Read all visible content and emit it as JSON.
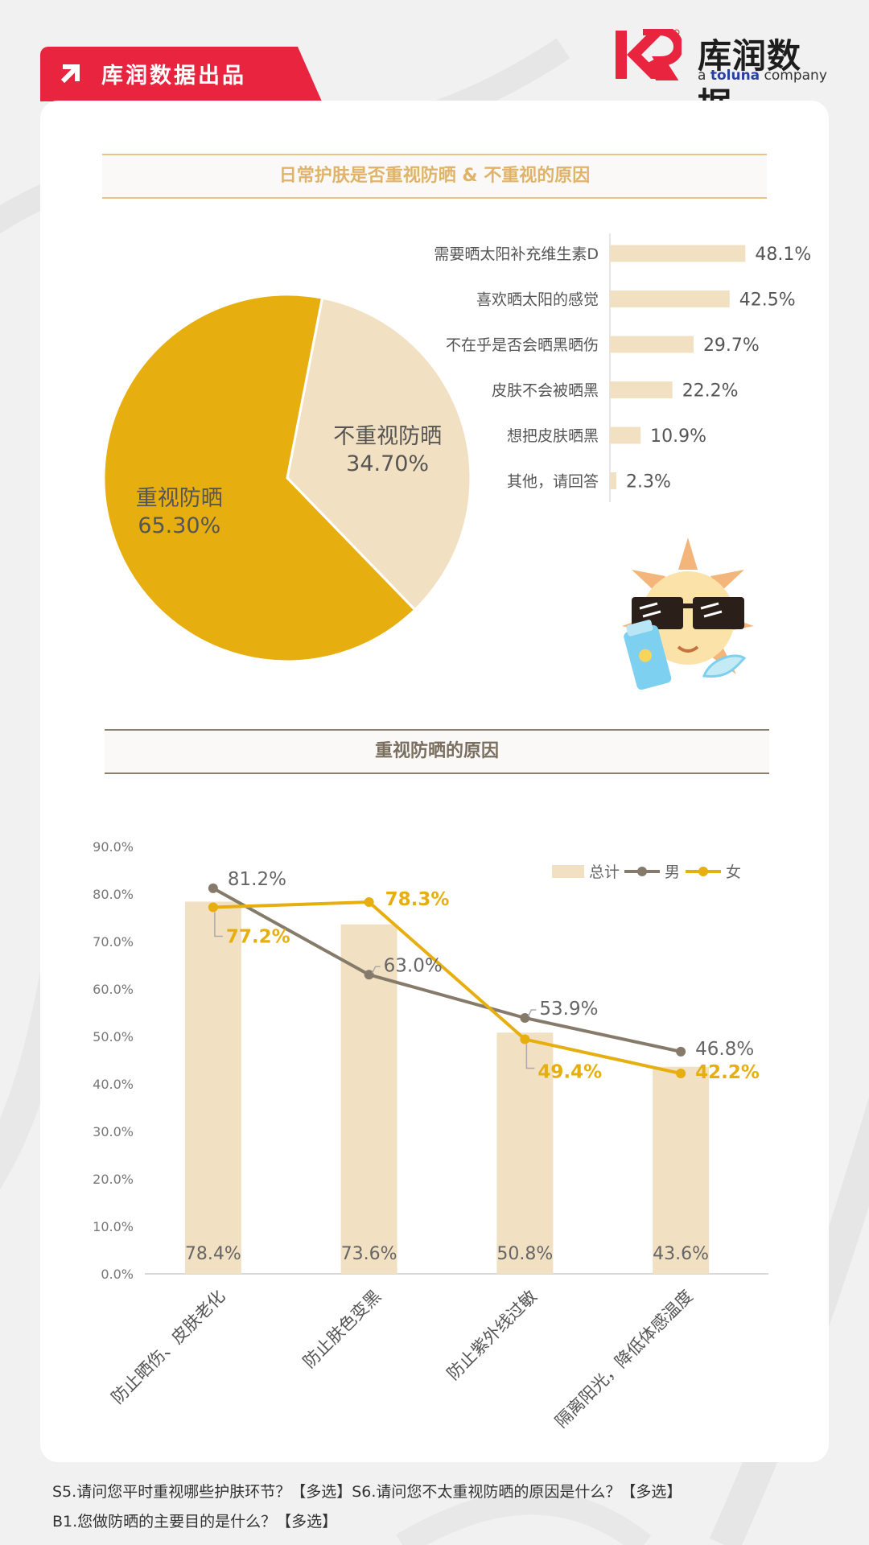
{
  "brand": {
    "tag_label": "库润数据出品",
    "logo_cn": "库润数据",
    "logo_en_prefix": "a ",
    "logo_en_brand": "toluna",
    "logo_en_suffix": " company"
  },
  "sections": {
    "top_title": "日常护肤是否重视防晒 & 不重视的原因",
    "bottom_title": "重视防晒的原因"
  },
  "footer": {
    "line1": "S5.请问您平时重视哪些护肤环节？【多选】S6.请问您不太重视防晒的原因是什么？【多选】",
    "line2": "B1.您做防晒的主要目的是什么？【多选】"
  },
  "colors": {
    "gold": "#e6ae0f",
    "beige": "#f2e0c2",
    "gray": "#867b6b",
    "red": "#e8243f"
  },
  "chart_data": [
    {
      "type": "pie",
      "slices": [
        {
          "label": "不重视防晒",
          "value": 34.7,
          "value_label": "34.70%",
          "color": "#f2e0c2"
        },
        {
          "label": "重视防晒",
          "value": 65.3,
          "value_label": "65.30%",
          "color": "#e6ae0f"
        }
      ]
    },
    {
      "type": "bar",
      "orientation": "horizontal",
      "categories": [
        "需要晒太阳补充维生素D",
        "喜欢晒太阳的感觉",
        "不在乎是否会晒黑晒伤",
        "皮肤不会被晒黑",
        "想把皮肤晒黑",
        "其他，请回答"
      ],
      "values": [
        48.1,
        42.5,
        29.7,
        22.2,
        10.9,
        2.3
      ],
      "value_labels": [
        "48.1%",
        "42.5%",
        "29.7%",
        "22.2%",
        "10.9%",
        "2.3%"
      ],
      "xlim": [
        0,
        50
      ]
    },
    {
      "type": "bar",
      "categories": [
        "防止晒伤、皮肤老化",
        "防止肤色变黑",
        "防止紫外线过敏",
        "隔离阳光，降低体感温度"
      ],
      "series": [
        {
          "name": "总计",
          "kind": "bar",
          "values": [
            78.4,
            73.6,
            50.8,
            43.6
          ],
          "labels": [
            "78.4%",
            "73.6%",
            "50.8%",
            "43.6%"
          ]
        },
        {
          "name": "男",
          "kind": "line",
          "values": [
            81.2,
            63.0,
            53.9,
            46.8
          ],
          "labels": [
            "81.2%",
            "63.0%",
            "53.9%",
            "46.8%"
          ]
        },
        {
          "name": "女",
          "kind": "line",
          "values": [
            77.2,
            78.3,
            49.4,
            42.2
          ],
          "labels": [
            "77.2%",
            "78.3%",
            "49.4%",
            "42.2%"
          ]
        }
      ],
      "ylim": [
        0,
        90
      ],
      "yticks": [
        "0.0%",
        "10.0%",
        "20.0%",
        "30.0%",
        "40.0%",
        "50.0%",
        "60.0%",
        "70.0%",
        "80.0%",
        "90.0%"
      ],
      "legend_position": "top-right"
    }
  ]
}
